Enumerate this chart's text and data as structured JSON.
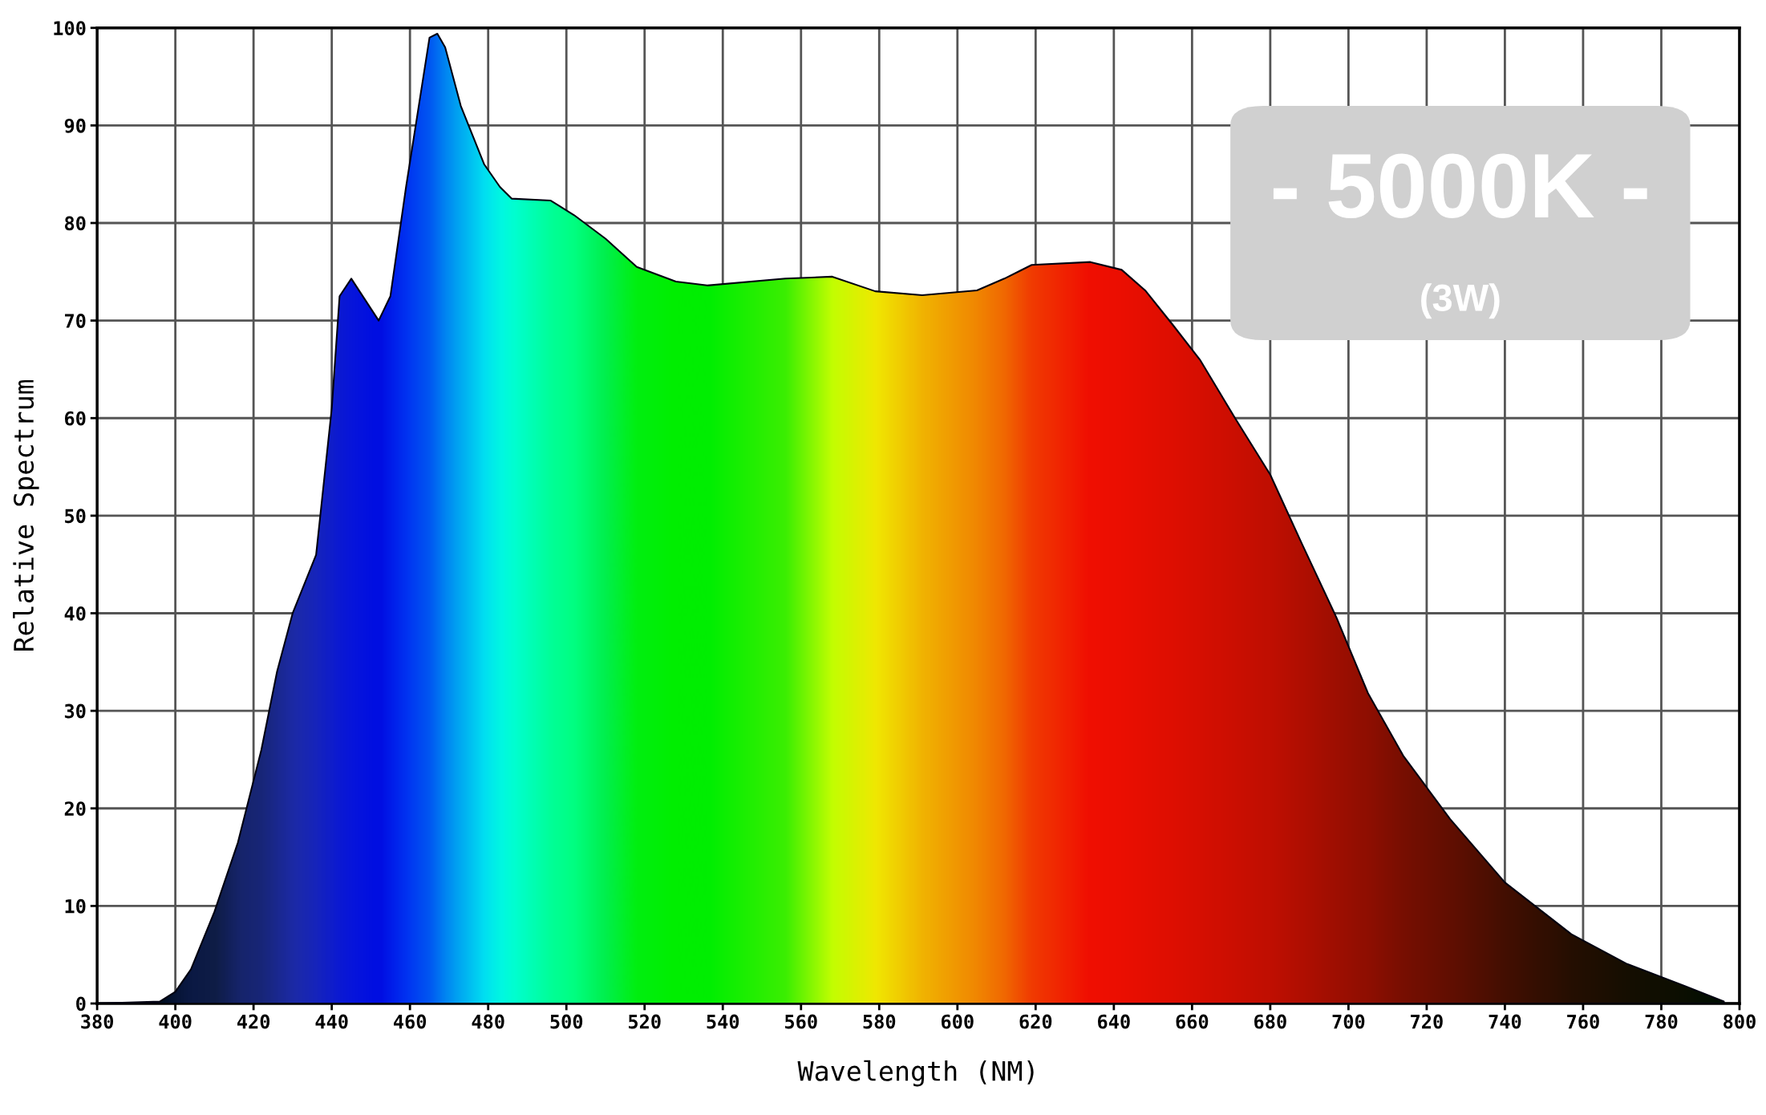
{
  "chart_data": {
    "type": "area",
    "xlabel": "Wavelength (NM)",
    "ylabel": "Relative Spectrum",
    "annotations": [
      "- 5000K -",
      "(3W)"
    ],
    "x": [
      380,
      396,
      400,
      404,
      410,
      416,
      422,
      426,
      430,
      436,
      440,
      442,
      445,
      452,
      455,
      459,
      465,
      467,
      469,
      473,
      479,
      483,
      486,
      496,
      502,
      510,
      518,
      528,
      536,
      556,
      568,
      579,
      591,
      605,
      612,
      619,
      634,
      642,
      648,
      655,
      662,
      671,
      680,
      688,
      697,
      705,
      714,
      726,
      740,
      757,
      771,
      786,
      796
    ],
    "values": [
      0,
      0.2,
      1.2,
      3.5,
      9.4,
      16.5,
      26,
      34,
      40,
      46,
      61,
      72.5,
      74.3,
      70,
      72.5,
      83.7,
      99,
      99.4,
      98,
      92,
      86,
      83.7,
      82.5,
      82.3,
      80.8,
      78.4,
      75.5,
      74,
      73.6,
      74.3,
      74.5,
      73,
      72.6,
      73.1,
      74.3,
      75.7,
      76,
      75.2,
      73.1,
      69.6,
      66,
      60,
      54.2,
      47.2,
      39.5,
      31.8,
      25.4,
      18.9,
      12.4,
      7.1,
      4.1,
      1.8,
      0.2
    ],
    "colors": [
      "#000010",
      "#000020",
      "#08083a",
      "#0c0c48",
      "#10104a",
      "#181870",
      "#1a1a80",
      "#1c1c98",
      "#1e1eb0",
      "#1818c8",
      "#1010d8",
      "#0c0ce0",
      "#0808e8",
      "#0000f0",
      "#0010f8",
      "#0028ff",
      "#0050ff",
      "#0068ff",
      "#0080ff",
      "#00a8ff",
      "#00e0ff",
      "#00f8f0",
      "#00ffe0",
      "#00ffa0",
      "#00ff88",
      "#00f050",
      "#00f010",
      "#00ee00",
      "#00ee00",
      "#40f000",
      "#d0ff00",
      "#ffe800",
      "#ffb000",
      "#ff8000",
      "#ff6000",
      "#ff3000",
      "#ff0000",
      "#fa0000",
      "#f40000",
      "#ec0000",
      "#e40000",
      "#d80000",
      "#cc0000",
      "#bc0000",
      "#a80000",
      "#980000",
      "#800000",
      "#680000",
      "#480000",
      "#280000",
      "#180000",
      "#0c0000",
      "#000000"
    ],
    "xlim": [
      380,
      800
    ],
    "xticks": [
      380,
      400,
      420,
      440,
      460,
      480,
      500,
      520,
      540,
      560,
      580,
      600,
      620,
      640,
      660,
      680,
      700,
      720,
      740,
      760,
      780,
      800
    ],
    "ylim": [
      0,
      100
    ],
    "yticks": [
      0,
      10,
      20,
      30,
      40,
      50,
      60,
      70,
      80,
      90,
      100
    ],
    "grid": true
  }
}
